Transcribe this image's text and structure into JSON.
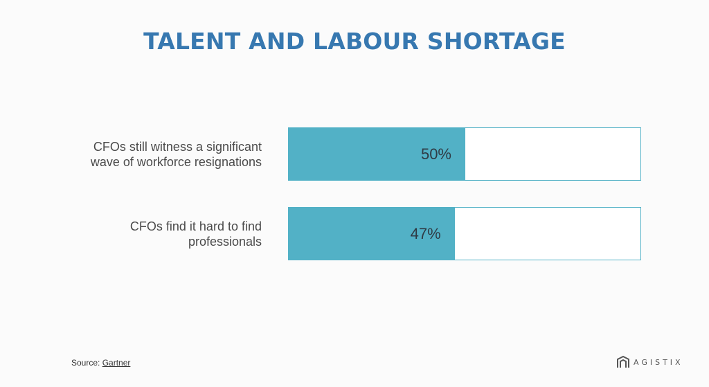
{
  "title": "TALENT AND LABOUR SHORTAGE",
  "chart_data": {
    "type": "bar",
    "orientation": "horizontal",
    "title": "TALENT AND LABOUR SHORTAGE",
    "categories": [
      [
        "CFOs still witness a significant",
        "wave of workforce resignations"
      ],
      [
        "CFOs find it hard to find",
        "professionals"
      ]
    ],
    "values": [
      50,
      47
    ],
    "value_labels": [
      "50%",
      "47%"
    ],
    "xlim": [
      0,
      100
    ],
    "grid": false,
    "legend": "none"
  },
  "source": {
    "prefix": "Source: ",
    "name": "Gartner"
  },
  "brand": {
    "name": "AGISTIX",
    "icon": "agistix-logo-icon"
  },
  "colors": {
    "title": "#3778b0",
    "bar": "#52b1c6",
    "track": "#ffffff"
  }
}
